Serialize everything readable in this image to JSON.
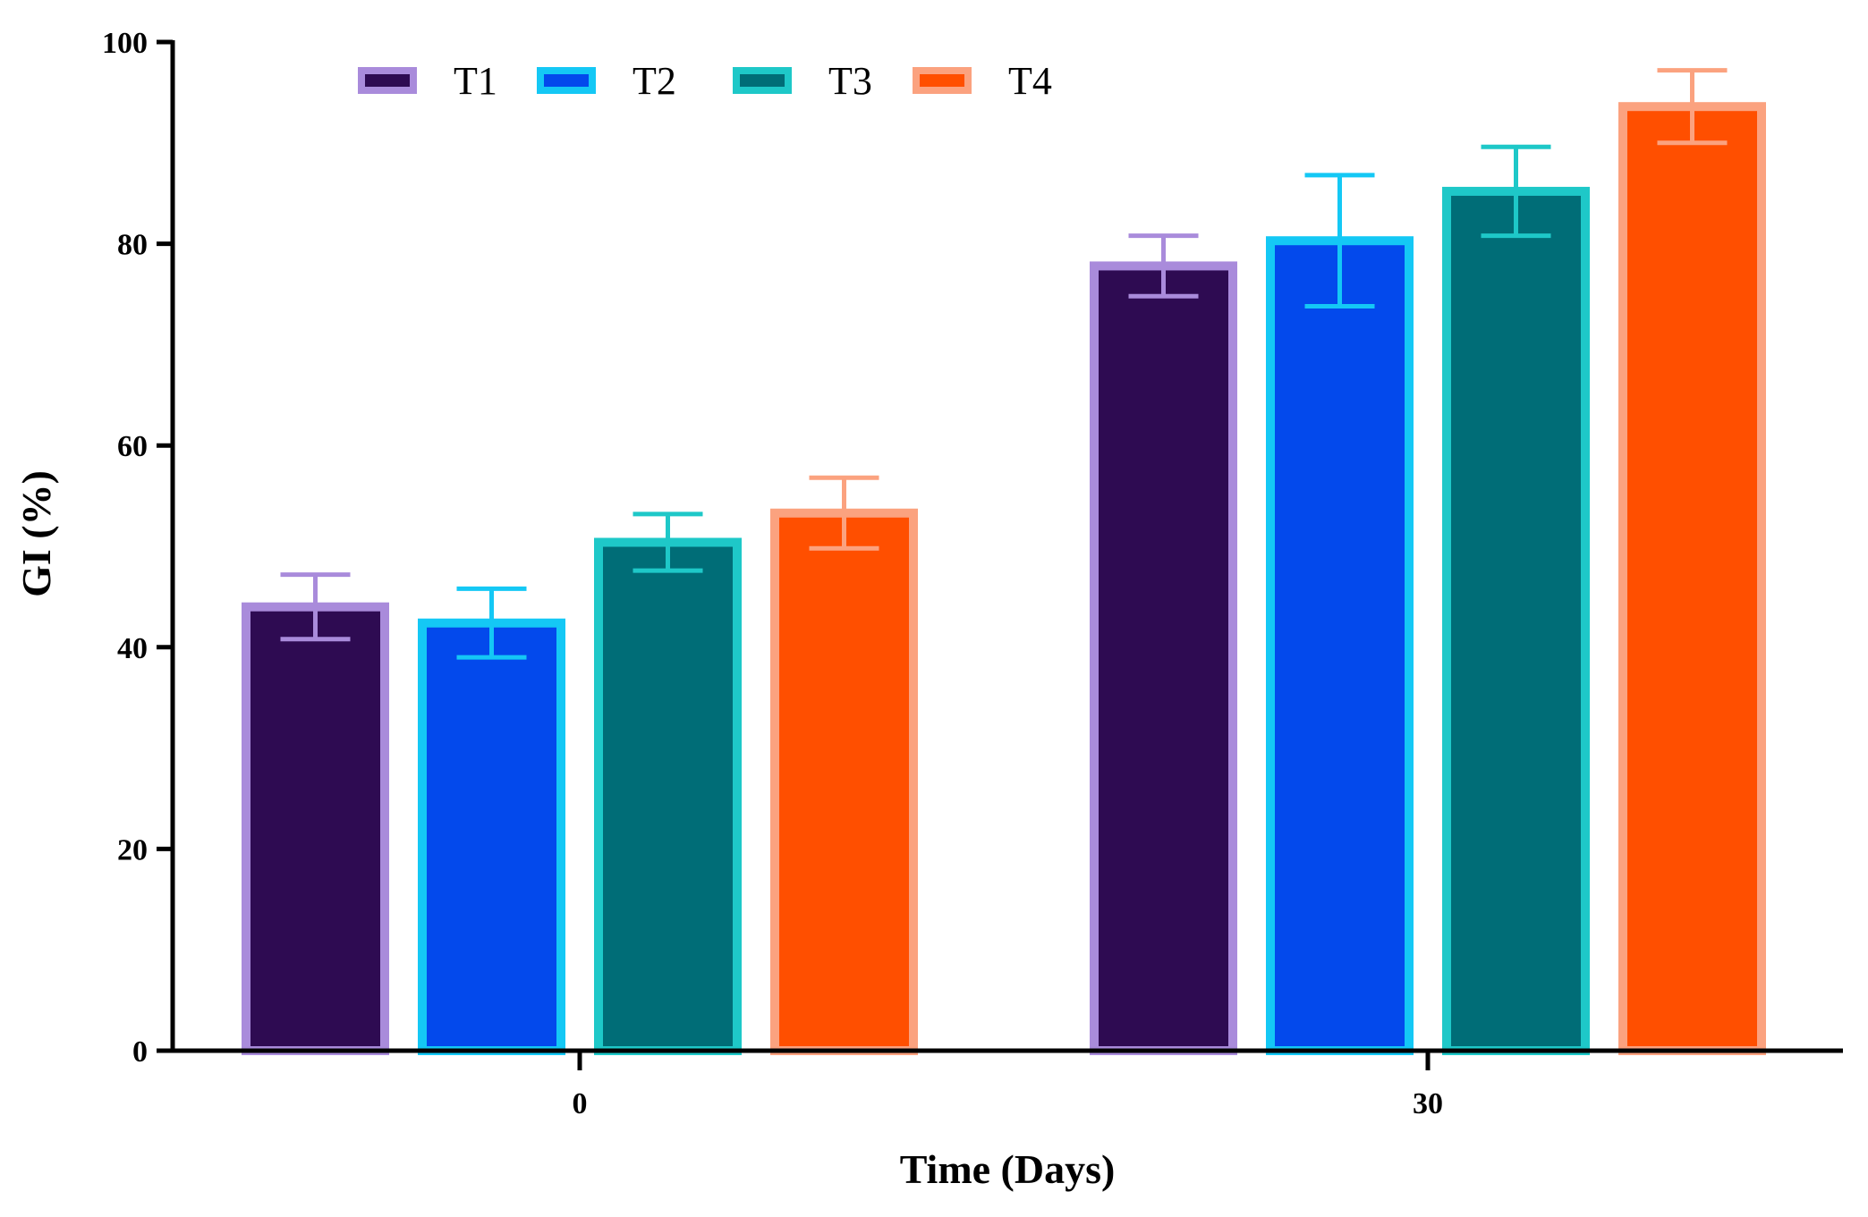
{
  "chart_data": {
    "type": "bar",
    "title": "",
    "xlabel": "Time (Days)",
    "ylabel": "GI (%)",
    "ylim": [
      0,
      100
    ],
    "yticks": [
      0,
      20,
      40,
      60,
      80,
      100
    ],
    "categories": [
      "0",
      "30"
    ],
    "series": [
      {
        "name": "T1",
        "values": [
          44,
          77.8
        ],
        "errors": [
          3.2,
          3.0
        ],
        "fill": "#2e0b52",
        "stroke": "#a98bdb"
      },
      {
        "name": "T2",
        "values": [
          42.4,
          80.3
        ],
        "errors": [
          3.4,
          6.5
        ],
        "fill": "#0349ec",
        "stroke": "#14c8f5"
      },
      {
        "name": "T3",
        "values": [
          50.4,
          85.2
        ],
        "errors": [
          2.8,
          4.4
        ],
        "fill": "#006d77",
        "stroke": "#1ec8c8"
      },
      {
        "name": "T4",
        "values": [
          53.3,
          93.6
        ],
        "errors": [
          3.5,
          3.6
        ],
        "fill": "#ff4f00",
        "stroke": "#fba27f"
      }
    ],
    "legend_position": "top-left",
    "grid": false
  }
}
